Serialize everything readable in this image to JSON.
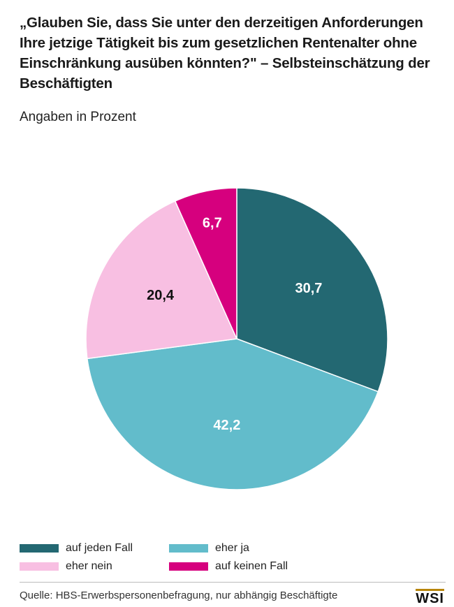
{
  "chart_data": {
    "type": "pie",
    "title": "„Glauben Sie, dass Sie unter den derzeitigen Anforderungen Ihre jetzige Tätigkeit bis zum gesetzlichen Rentenalter ohne Einschränkung ausüben könnten?\" – Selbsteinschätzung der Beschäftigten",
    "subtitle": "Angaben in Prozent",
    "slices": [
      {
        "label": "auf jeden Fall",
        "value": 30.7,
        "display": "30,7",
        "color": "#236872",
        "text_color": "#ffffff"
      },
      {
        "label": "eher ja",
        "value": 42.2,
        "display": "42,2",
        "color": "#62bccb",
        "text_color": "#ffffff"
      },
      {
        "label": "eher nein",
        "value": 20.4,
        "display": "20,4",
        "color": "#f8bfe2",
        "text_color": "#111111"
      },
      {
        "label": "auf keinen Fall",
        "value": 6.7,
        "display": "6,7",
        "color": "#d6007e",
        "text_color": "#ffffff"
      }
    ],
    "legend_position": "bottom"
  },
  "legend": {
    "item1": "auf jeden Fall",
    "item2": "eher ja",
    "item3": "eher nein",
    "item4": "auf keinen Fall"
  },
  "source": "Quelle: HBS-Erwerbspersonenbefragung, nur abhängig Beschäftigte",
  "logo": "WSI"
}
